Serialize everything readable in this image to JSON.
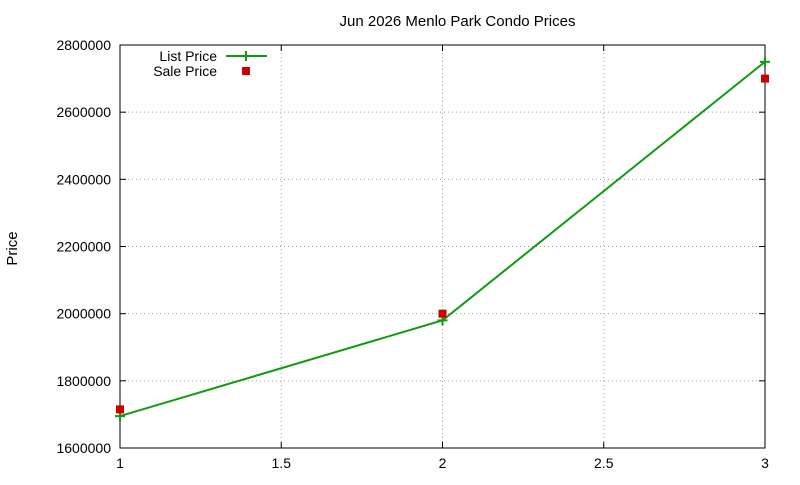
{
  "chart_data": {
    "type": "line",
    "title": "Jun 2026 Menlo Park Condo Prices",
    "xlabel": "",
    "ylabel": "Price",
    "x": [
      1,
      2,
      3
    ],
    "xlim": [
      1,
      3
    ],
    "ylim": [
      1600000,
      2800000
    ],
    "xticks": [
      1,
      1.5,
      2,
      2.5,
      3
    ],
    "xtick_labels": [
      "1",
      "1.5",
      "2",
      "2.5",
      "3"
    ],
    "yticks": [
      1600000,
      1800000,
      2000000,
      2200000,
      2400000,
      2600000,
      2800000
    ],
    "ytick_labels": [
      "1600000",
      "1800000",
      "2000000",
      "2200000",
      "2400000",
      "2600000",
      "2800000"
    ],
    "grid": true,
    "legend_position": "top-left",
    "series": [
      {
        "name": "List Price",
        "style": "line+cross",
        "color": "#119911",
        "values": [
          1695000,
          1980000,
          2750000
        ]
      },
      {
        "name": "Sale Price",
        "style": "square",
        "color": "#cc0000",
        "values": [
          1715000,
          2000000,
          2700000
        ]
      }
    ]
  }
}
